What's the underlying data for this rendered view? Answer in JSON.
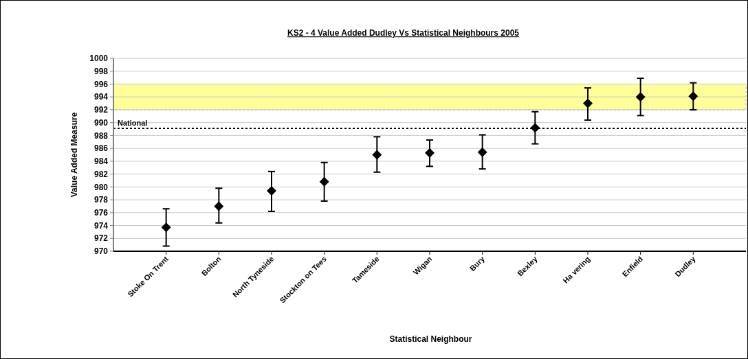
{
  "chart_data": {
    "type": "scatter",
    "title": "KS2 - 4 Value Added Dudley Vs Statistical Neighbours 2005",
    "xlabel": "Statistical Neighbour",
    "ylabel": "Value Added Measure",
    "categories": [
      "Stoke On Trent",
      "Bolton",
      "North Tyneside",
      "Stockton on Tees",
      "Tameside",
      "Wigan",
      "Bury",
      "Bexley",
      "Ha vering",
      "Enfield",
      "Dudley"
    ],
    "series": [
      {
        "color": "#000000",
        "values": [
          973.7,
          977.0,
          979.4,
          980.8,
          985.0,
          985.3,
          985.4,
          989.2,
          993.0,
          994.0,
          994.1
        ],
        "errors": [
          [
            970.8,
            976.6
          ],
          [
            974.4,
            979.8
          ],
          [
            976.2,
            982.4
          ],
          [
            977.8,
            983.8
          ],
          [
            982.3,
            987.8
          ],
          [
            983.2,
            987.3
          ],
          [
            982.8,
            988.1
          ],
          [
            986.7,
            991.7
          ],
          [
            990.4,
            995.4
          ],
          [
            991.1,
            996.9
          ],
          [
            992.0,
            996.2
          ]
        ]
      }
    ],
    "ylim": [
      970,
      1000
    ],
    "yticks": [
      970,
      972,
      974,
      976,
      978,
      980,
      982,
      984,
      986,
      988,
      990,
      992,
      994,
      996,
      998,
      1000
    ],
    "grid": "y",
    "marker": "diamond",
    "ref_lines": [
      {
        "axis": "y",
        "value": 989.1,
        "label": "National",
        "color": "#000000",
        "line_style": "dotted"
      }
    ],
    "bands": [
      {
        "axis": "y",
        "from": 992,
        "to": 996,
        "color": "#ffff99"
      }
    ]
  }
}
